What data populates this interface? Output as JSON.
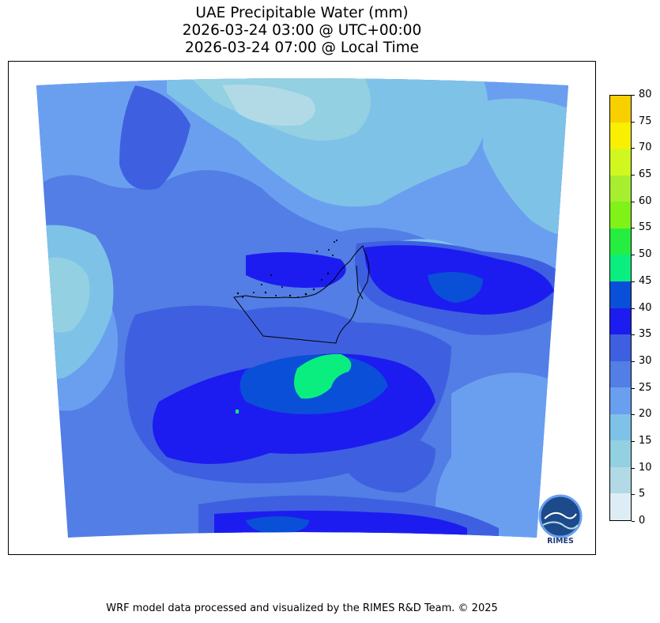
{
  "title": {
    "line1": "UAE Precipitable Water (mm)",
    "line2": "2026-03-24 03:00 @ UTC+00:00",
    "line3": "2026-03-24 07:00 @ Local Time"
  },
  "colorbar": {
    "ticks": [
      "0",
      "5",
      "10",
      "15",
      "20",
      "25",
      "30",
      "35",
      "40",
      "45",
      "50",
      "55",
      "60",
      "65",
      "70",
      "75",
      "80"
    ],
    "colors": [
      "#deedf5",
      "#b2dae6",
      "#92d0e2",
      "#7ec2e8",
      "#6a9ff0",
      "#527ee5",
      "#3e60e0",
      "#1c1cf0",
      "#0a4fd8",
      "#0aee80",
      "#26ee40",
      "#80f218",
      "#a8ee30",
      "#d0f820",
      "#f8f000",
      "#f8d000"
    ]
  },
  "logo": {
    "text": "RIMES"
  },
  "footer": {
    "text": "WRF model data processed and visualized by the RIMES R&D Team. © 2025"
  }
}
